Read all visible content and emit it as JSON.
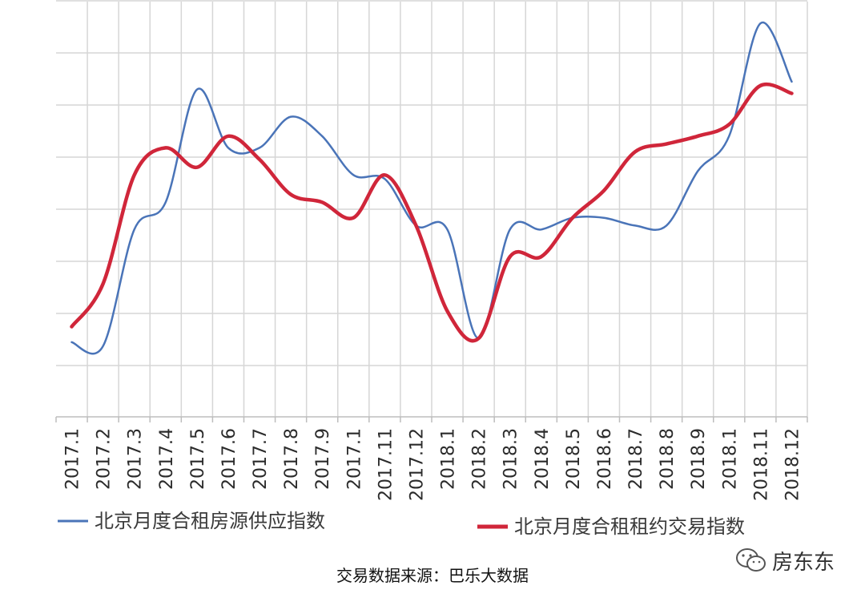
{
  "chart_data": {
    "type": "line",
    "categories": [
      "2017.1",
      "2017.2",
      "2017.3",
      "2017.4",
      "2017.5",
      "2017.6",
      "2017.7",
      "2017.8",
      "2017.9",
      "2017.1",
      "2017.11",
      "2017.12",
      "2018.1",
      "2018.2",
      "2018.3",
      "2018.4",
      "2018.5",
      "2018.6",
      "2018.7",
      "2018.8",
      "2018.9",
      "2018.1",
      "2018.11",
      "2018.12"
    ],
    "series": [
      {
        "name": "北京月度合租房源供应指数",
        "color": "#4a74b8",
        "values": [
          0.6,
          0.5,
          3.5,
          4.2,
          7.1,
          5.6,
          5.6,
          6.4,
          5.9,
          4.9,
          4.8,
          3.6,
          3.5,
          0.7,
          3.5,
          3.5,
          3.8,
          3.8,
          3.6,
          3.6,
          5.0,
          5.9,
          8.8,
          7.3
        ]
      },
      {
        "name": "北京月度合租租约交易指数",
        "color": "#d0263a",
        "values": [
          1.0,
          2.1,
          4.9,
          5.6,
          5.1,
          5.9,
          5.3,
          4.4,
          4.2,
          3.8,
          4.9,
          3.6,
          1.4,
          0.7,
          2.8,
          2.8,
          3.8,
          4.5,
          5.5,
          5.7,
          5.9,
          6.2,
          7.2,
          7.0
        ]
      }
    ],
    "grid": true,
    "legend": "bottom"
  },
  "source_text": "交易数据来源：巴乐大数据",
  "watermark": {
    "text": "房东东",
    "icon": "wechat-icon"
  }
}
